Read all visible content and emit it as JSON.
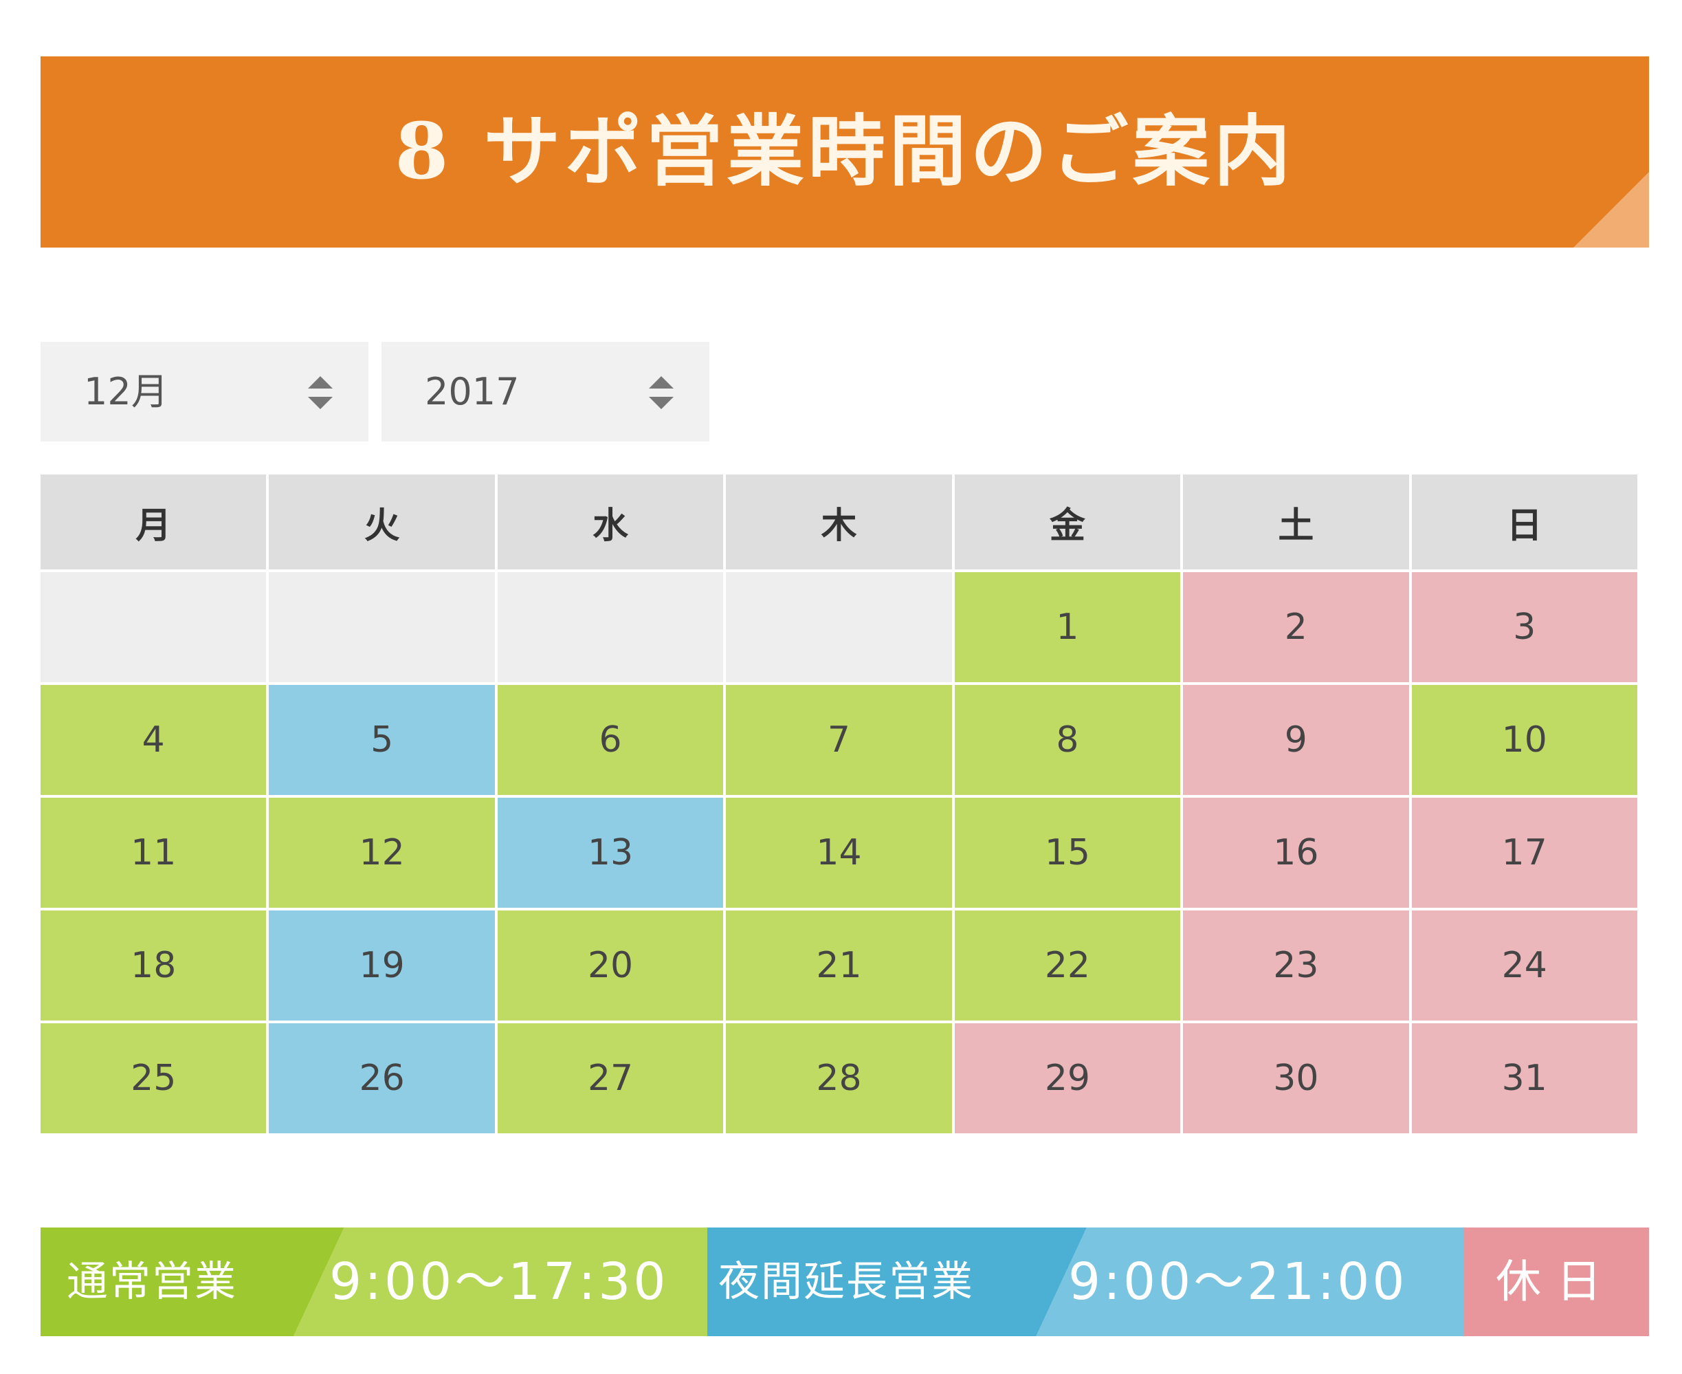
{
  "header": {
    "title": "8 サポ営業時間のご案内",
    "color": "#e67e22"
  },
  "controls": {
    "month": "12月",
    "year": "2017"
  },
  "calendar": {
    "weekdays": [
      "月",
      "火",
      "水",
      "木",
      "金",
      "土",
      "日"
    ],
    "weeks": [
      [
        {
          "day": "",
          "type": "empty"
        },
        {
          "day": "",
          "type": "empty"
        },
        {
          "day": "",
          "type": "empty"
        },
        {
          "day": "",
          "type": "empty"
        },
        {
          "day": "1",
          "type": "normal"
        },
        {
          "day": "2",
          "type": "holiday"
        },
        {
          "day": "3",
          "type": "holiday"
        }
      ],
      [
        {
          "day": "4",
          "type": "normal"
        },
        {
          "day": "5",
          "type": "night"
        },
        {
          "day": "6",
          "type": "normal"
        },
        {
          "day": "7",
          "type": "normal"
        },
        {
          "day": "8",
          "type": "normal"
        },
        {
          "day": "9",
          "type": "holiday"
        },
        {
          "day": "10",
          "type": "normal"
        }
      ],
      [
        {
          "day": "11",
          "type": "normal"
        },
        {
          "day": "12",
          "type": "normal"
        },
        {
          "day": "13",
          "type": "night"
        },
        {
          "day": "14",
          "type": "normal"
        },
        {
          "day": "15",
          "type": "normal"
        },
        {
          "day": "16",
          "type": "holiday"
        },
        {
          "day": "17",
          "type": "holiday"
        }
      ],
      [
        {
          "day": "18",
          "type": "normal"
        },
        {
          "day": "19",
          "type": "night"
        },
        {
          "day": "20",
          "type": "normal"
        },
        {
          "day": "21",
          "type": "normal"
        },
        {
          "day": "22",
          "type": "normal"
        },
        {
          "day": "23",
          "type": "holiday"
        },
        {
          "day": "24",
          "type": "holiday"
        }
      ],
      [
        {
          "day": "25",
          "type": "normal"
        },
        {
          "day": "26",
          "type": "night"
        },
        {
          "day": "27",
          "type": "normal"
        },
        {
          "day": "28",
          "type": "normal"
        },
        {
          "day": "29",
          "type": "holiday"
        },
        {
          "day": "30",
          "type": "holiday"
        },
        {
          "day": "31",
          "type": "holiday"
        }
      ]
    ],
    "colors": {
      "normal": "#bfdb64",
      "night": "#8ecde3",
      "holiday": "#ebb7bb",
      "empty": "#eeeeee"
    }
  },
  "legend": {
    "normal": {
      "label": "通常営業",
      "time": "9:00〜17:30"
    },
    "night": {
      "label": "夜間延長営業",
      "time": "9:00〜21:00"
    },
    "holiday": {
      "label": "休日"
    }
  }
}
